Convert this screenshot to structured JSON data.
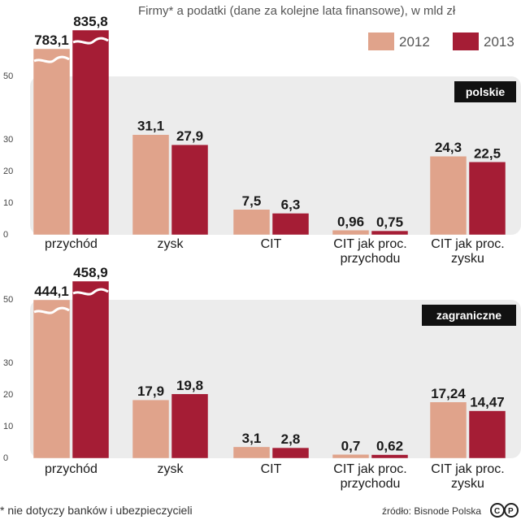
{
  "colors": {
    "y2012": "#e0a38b",
    "y2013": "#a51d35",
    "panel": "#ececec",
    "tag": "#111111"
  },
  "chart_data": {
    "type": "bar",
    "title": "Firmy* a podatki (dane za kolejne lata finansowe), w mld zł",
    "legend": [
      "2012",
      "2013"
    ],
    "ticks": [
      "0",
      "10",
      "20",
      "30",
      "50"
    ],
    "categories": [
      "przychód",
      "zysk",
      "CIT",
      "CIT jak proc. przychodu",
      "CIT jak proc. zysku"
    ],
    "category_lines": [
      [
        "przychód"
      ],
      [
        "zysk"
      ],
      [
        "CIT"
      ],
      [
        "CIT jak proc.",
        "przychodu"
      ],
      [
        "CIT jak proc.",
        "zysku"
      ]
    ],
    "panels": [
      {
        "name": "polskie",
        "series": [
          {
            "name": "2012",
            "values": [
              783.1,
              31.1,
              7.5,
              0.96,
              24.3
            ],
            "labels": [
              "783,1",
              "31,1",
              "7,5",
              "0,96",
              "24,3"
            ]
          },
          {
            "name": "2013",
            "values": [
              835.8,
              27.9,
              6.3,
              0.75,
              22.5
            ],
            "labels": [
              "835,8",
              "27,9",
              "6,3",
              "0,75",
              "22,5"
            ]
          }
        ]
      },
      {
        "name": "zagraniczne",
        "series": [
          {
            "name": "2012",
            "values": [
              444.1,
              17.9,
              3.1,
              0.7,
              17.24
            ],
            "labels": [
              "444,1",
              "17,9",
              "3,1",
              "0,7",
              "17,24"
            ]
          },
          {
            "name": "2013",
            "values": [
              458.9,
              19.8,
              2.8,
              0.62,
              14.47
            ],
            "labels": [
              "458,9",
              "19,8",
              "2,8",
              "0,62",
              "14,47"
            ]
          }
        ]
      }
    ]
  },
  "footnote": "* nie dotyczy banków i ubezpieczycieli",
  "source": "źródło: Bisnode Polska"
}
